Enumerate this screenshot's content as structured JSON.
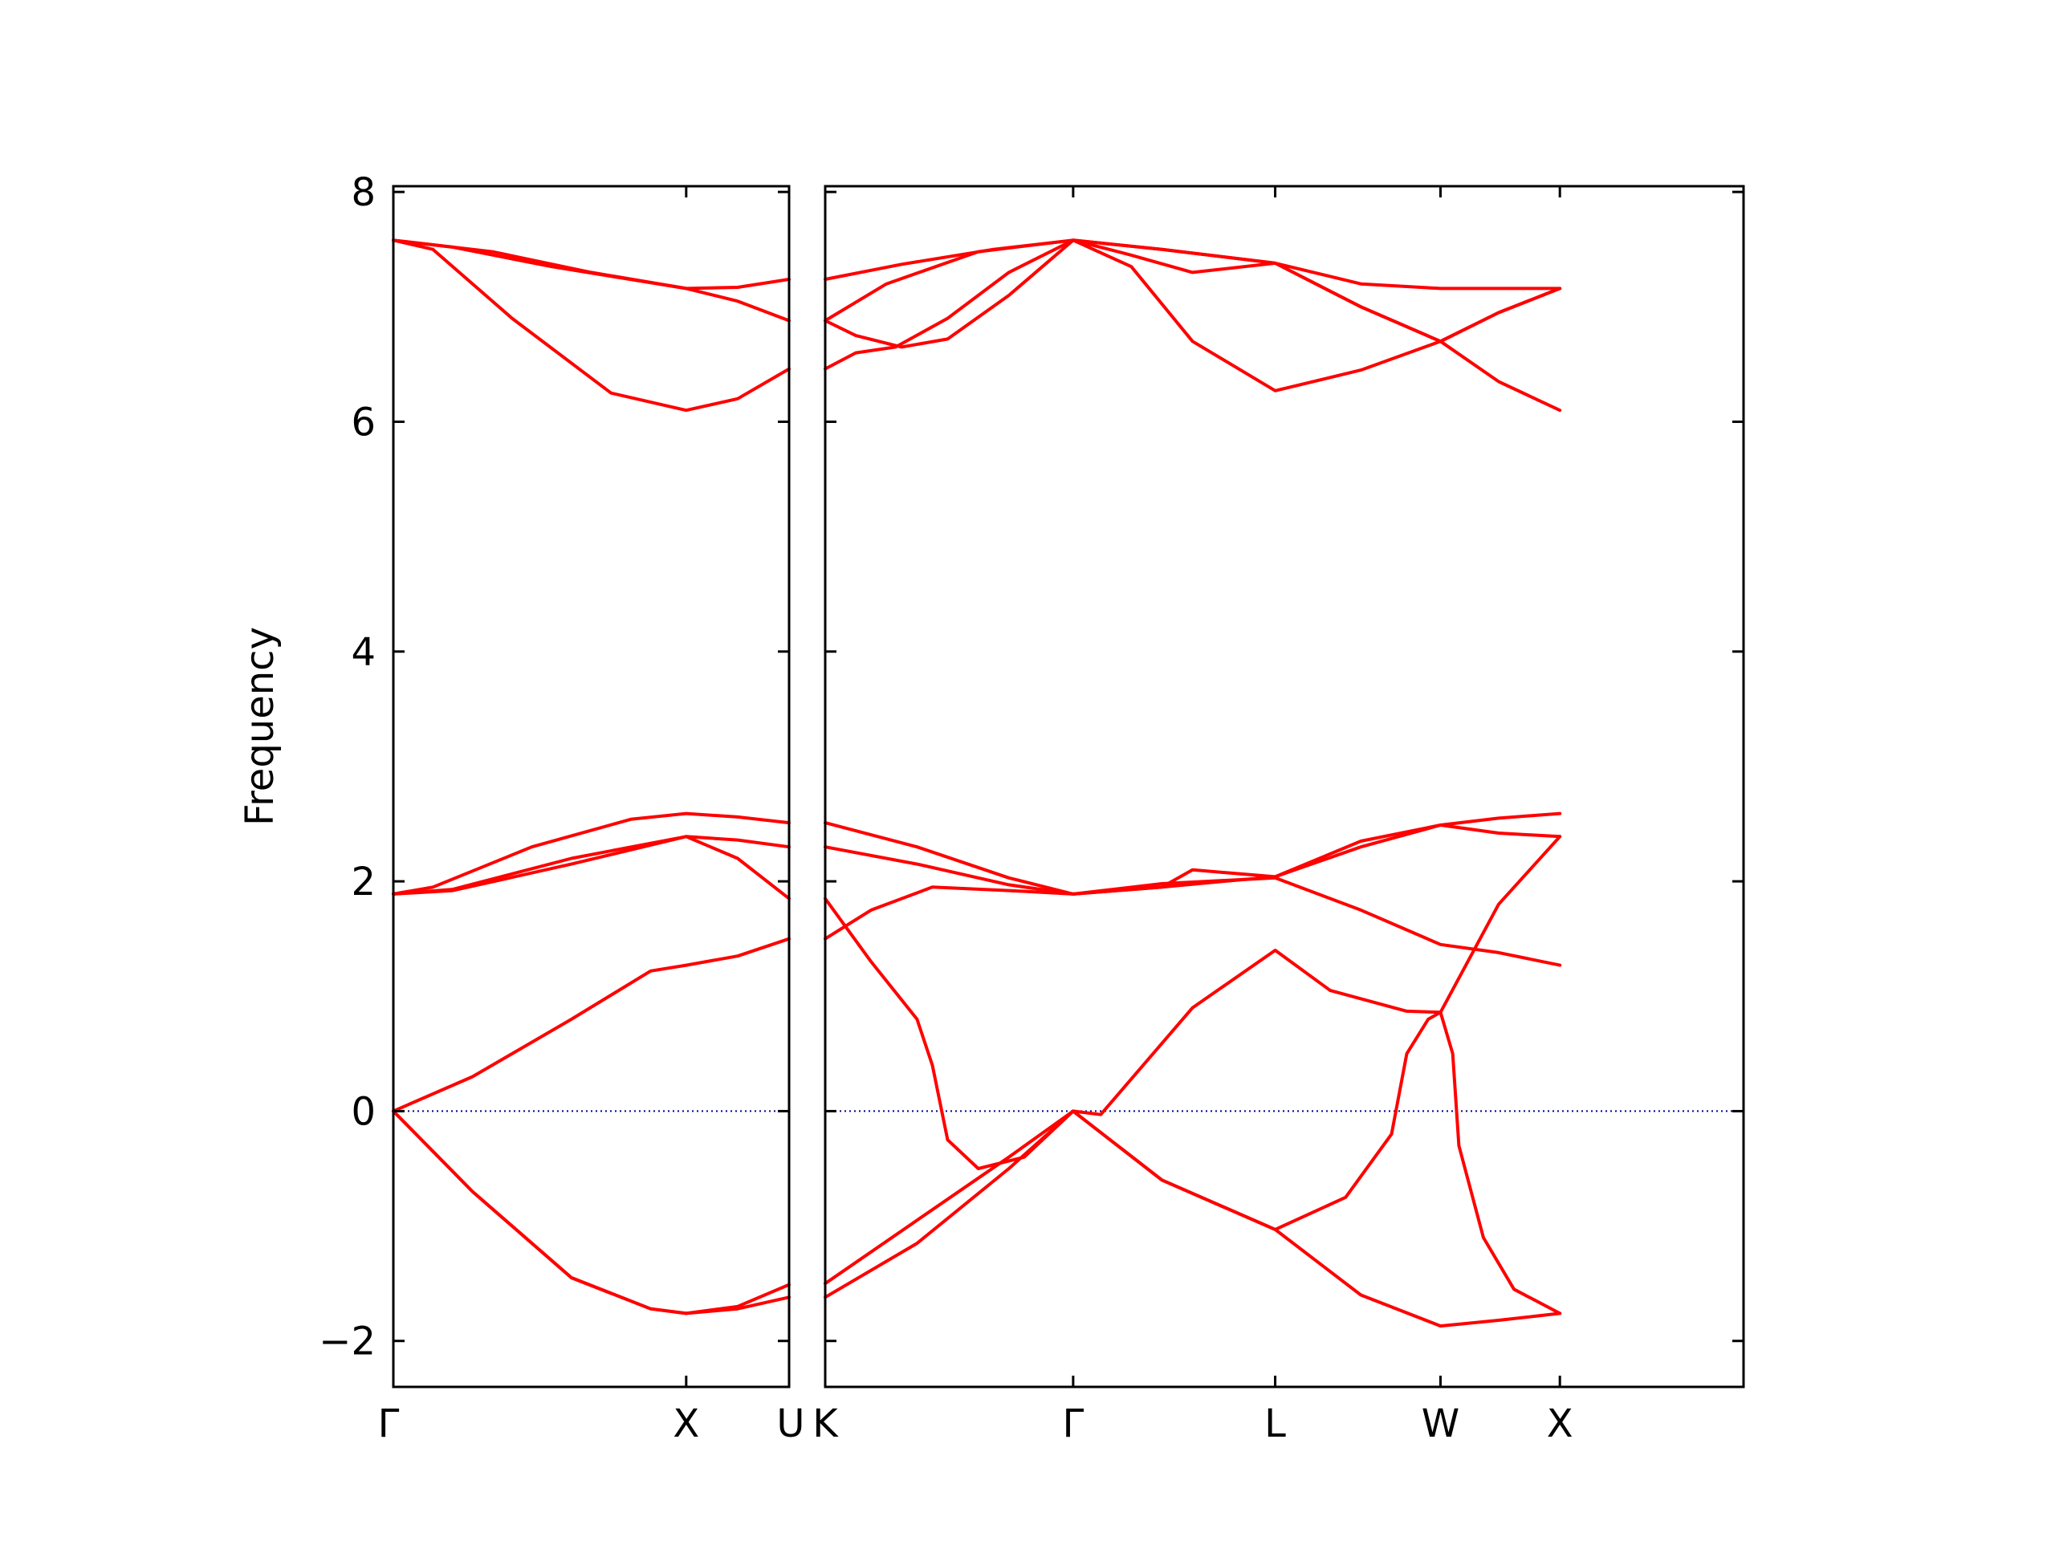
{
  "chart_data": {
    "type": "line",
    "ylabel": "Frequency",
    "xlabel": "",
    "ylim": [
      -2.4,
      8.05
    ],
    "yticks": [
      -2,
      0,
      2,
      4,
      6,
      8
    ],
    "ytick_labels": [
      "−2",
      "0",
      "2",
      "4",
      "6",
      "8"
    ],
    "grid": false,
    "legend": "none",
    "series_color": "#ff0000",
    "zero_line_color": "#00008b",
    "panels": [
      {
        "x_range": [
          0,
          1.0
        ],
        "high_symmetry_points": [
          {
            "x": 0,
            "label": "Γ"
          },
          {
            "x": 0.74,
            "label": "X"
          },
          {
            "x": 1.0,
            "label": "U"
          }
        ],
        "series": [
          {
            "x": [
              0,
              0.25,
              0.5,
              0.74,
              0.87,
              1.0
            ],
            "y": [
              7.58,
              7.48,
              7.3,
              7.16,
              7.17,
              7.24
            ]
          },
          {
            "x": [
              0,
              0.1,
              0.3,
              0.55,
              0.74,
              0.87,
              1.0
            ],
            "y": [
              7.58,
              7.5,
              6.9,
              6.25,
              6.1,
              6.2,
              6.46
            ]
          },
          {
            "x": [
              0,
              0.15,
              0.4,
              0.74,
              0.87,
              1.0
            ],
            "y": [
              7.58,
              7.52,
              7.35,
              7.16,
              7.05,
              6.88
            ]
          },
          {
            "x": [
              0,
              0.1,
              0.35,
              0.6,
              0.74,
              0.87,
              1.0
            ],
            "y": [
              1.89,
              1.95,
              2.3,
              2.54,
              2.59,
              2.56,
              2.51
            ]
          },
          {
            "x": [
              0,
              0.15,
              0.45,
              0.74,
              0.87,
              1.0
            ],
            "y": [
              1.89,
              1.93,
              2.2,
              2.39,
              2.36,
              2.3
            ]
          },
          {
            "x": [
              0,
              0.15,
              0.45,
              0.74,
              0.87,
              1.0
            ],
            "y": [
              1.89,
              1.92,
              2.15,
              2.39,
              2.2,
              1.85
            ]
          },
          {
            "x": [
              0,
              0.2,
              0.45,
              0.65,
              0.74,
              0.87,
              1.0
            ],
            "y": [
              0,
              0.3,
              0.8,
              1.22,
              1.27,
              1.35,
              1.5
            ]
          },
          {
            "x": [
              0,
              0.2,
              0.45,
              0.65,
              0.74,
              0.87,
              1.0
            ],
            "y": [
              0,
              -0.7,
              -1.45,
              -1.72,
              -1.76,
              -1.7,
              -1.51
            ]
          },
          {
            "x": [
              0,
              0.2,
              0.45,
              0.65,
              0.74,
              0.87,
              1.0
            ],
            "y": [
              0,
              -0.7,
              -1.45,
              -1.72,
              -1.76,
              -1.72,
              -1.62
            ]
          }
        ]
      },
      {
        "x_range": [
          0,
          3.0
        ],
        "high_symmetry_points": [
          {
            "x": 0,
            "label": "K"
          },
          {
            "x": 0.81,
            "label": "Γ"
          },
          {
            "x": 1.47,
            "label": "L"
          },
          {
            "x": 2.01,
            "label": "W"
          },
          {
            "x": 2.4,
            "label": "X"
          }
        ],
        "series": [
          {
            "x": [
              0,
              0.25,
              0.55,
              0.81,
              1.1,
              1.47,
              1.75,
              2.01,
              2.2,
              2.4
            ],
            "y": [
              7.24,
              7.37,
              7.5,
              7.58,
              7.5,
              7.38,
              7.2,
              7.16,
              7.16,
              7.16
            ]
          },
          {
            "x": [
              0,
              0.2,
              0.5,
              0.81,
              1.1,
              1.47,
              1.75,
              2.01,
              2.2,
              2.4
            ],
            "y": [
              6.88,
              7.2,
              7.48,
              7.58,
              7.5,
              7.38,
              7.0,
              6.7,
              6.95,
              7.16
            ]
          },
          {
            "x": [
              0,
              0.1,
              0.23,
              0.4,
              0.6,
              0.81,
              1.0,
              1.2,
              1.47,
              1.75,
              2.01,
              2.2,
              2.4
            ],
            "y": [
              6.46,
              6.6,
              6.65,
              6.9,
              7.3,
              7.58,
              7.35,
              6.7,
              6.27,
              6.45,
              6.7,
              6.35,
              6.1
            ]
          },
          {
            "x": [
              0,
              0.1,
              0.25,
              0.4,
              0.6,
              0.81,
              1.0,
              1.2,
              1.47,
              1.75,
              2.01,
              2.2,
              2.4
            ],
            "y": [
              6.88,
              6.75,
              6.65,
              6.72,
              7.1,
              7.58,
              7.45,
              7.3,
              7.38,
              7.0,
              6.7,
              6.95,
              7.16
            ]
          },
          {
            "x": [
              0,
              0.3,
              0.6,
              0.81,
              1.1,
              1.2,
              1.47,
              1.75,
              2.01,
              2.2,
              2.4
            ],
            "y": [
              2.51,
              2.3,
              2.03,
              1.89,
              1.95,
              2.1,
              2.04,
              2.35,
              2.49,
              2.55,
              2.59
            ]
          },
          {
            "x": [
              0,
              0.3,
              0.6,
              0.81,
              1.1,
              1.3,
              1.47,
              1.75,
              2.01,
              2.2,
              2.4
            ],
            "y": [
              2.3,
              2.15,
              1.97,
              1.89,
              1.95,
              2.0,
              2.04,
              2.3,
              2.49,
              2.42,
              2.39
            ]
          },
          {
            "x": [
              0,
              0.15,
              0.35,
              0.6,
              0.81,
              1.1,
              1.47,
              1.75,
              2.01,
              2.2,
              2.4
            ],
            "y": [
              1.5,
              1.75,
              1.95,
              1.92,
              1.89,
              1.98,
              2.03,
              1.75,
              1.45,
              1.38,
              1.27
            ]
          },
          {
            "x": [
              0,
              0.15,
              0.3,
              0.35,
              0.4,
              0.5,
              0.65,
              0.81
            ],
            "y": [
              1.85,
              1.3,
              0.8,
              0.4,
              -0.25,
              -0.5,
              -0.4,
              0
            ]
          },
          {
            "x": [
              0.81,
              0.9,
              1.2,
              1.47,
              1.65,
              1.9,
              2.01,
              2.2,
              2.4
            ],
            "y": [
              0,
              -0.03,
              0.9,
              1.4,
              1.05,
              0.87,
              0.86,
              1.8,
              2.39
            ]
          },
          {
            "x": [
              0,
              0.3,
              0.6,
              0.81,
              1.1,
              1.47,
              1.7,
              1.85,
              1.9,
              1.97,
              2.01
            ],
            "y": [
              -1.5,
              -0.95,
              -0.4,
              0,
              -0.6,
              -1.03,
              -0.75,
              -0.2,
              0.5,
              0.8,
              0.86
            ]
          },
          {
            "x": [
              0,
              0.3,
              0.6,
              0.81,
              1.1,
              1.47,
              1.75,
              2.01,
              2.2,
              2.4
            ],
            "y": [
              -1.62,
              -1.15,
              -0.5,
              0,
              -0.6,
              -1.03,
              -1.6,
              -1.87,
              -1.82,
              -1.76
            ]
          },
          {
            "x": [
              2.01,
              2.05,
              2.07,
              2.15,
              2.25,
              2.4
            ],
            "y": [
              0.86,
              0.5,
              -0.3,
              -1.1,
              -1.55,
              -1.76
            ]
          }
        ]
      }
    ]
  }
}
